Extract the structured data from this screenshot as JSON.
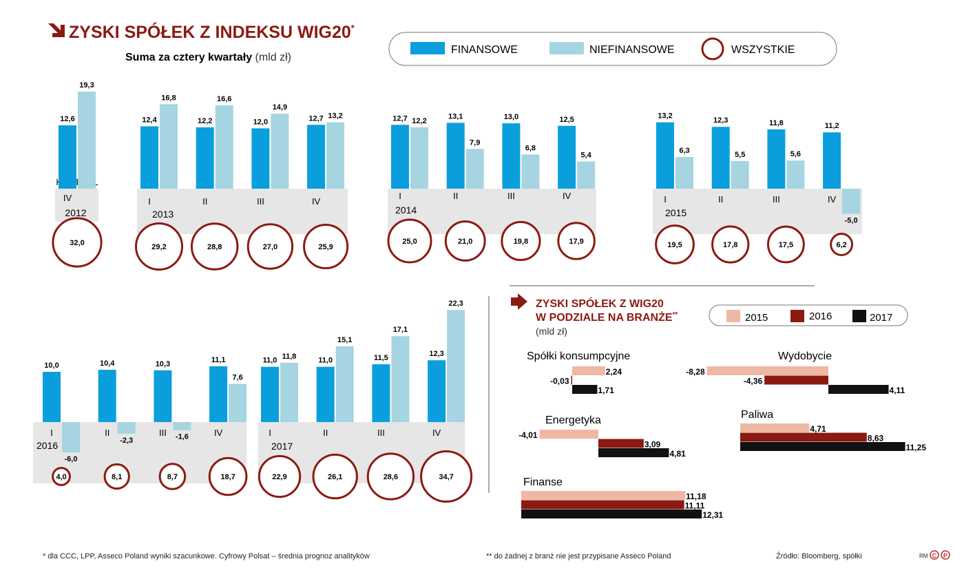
{
  "title": "ZYSKI SPÓŁEK Z INDEKSU WIG20",
  "title_mark": "*",
  "subtitle_bold": "Suma za cztery kwartały",
  "subtitle_unit": "(mld zł)",
  "quarter_caption": "KWARTAŁ",
  "legend": {
    "fin": "FINANSOWE",
    "nonfin": "NIEFINANSOWE",
    "total": "WSZYSTKIE"
  },
  "colors": {
    "fin": "#0a9fdc",
    "nonfin": "#a6d4e1",
    "total": "#8b1a12",
    "band": "#e6e6e6",
    "y2015": "#efb8a4",
    "y2016": "#8b1a12",
    "y2017": "#111111",
    "title": "#8b1a12"
  },
  "chart_data": [
    {
      "type": "bar",
      "title": "ZYSKI SPÓŁEK Z INDEKSU WIG20*",
      "subtitle": "Suma za cztery kwartały (mld zł)",
      "series_names": [
        "FINANSOWE",
        "NIEFINANSOWE",
        "WSZYSTKIE"
      ],
      "years": [
        {
          "year": "2012",
          "quarters": [
            {
              "q": "IV",
              "fin": 12.6,
              "nonfin": 19.3,
              "total": 32.0
            }
          ]
        },
        {
          "year": "2013",
          "quarters": [
            {
              "q": "I",
              "fin": 12.4,
              "nonfin": 16.8,
              "total": 29.2
            },
            {
              "q": "II",
              "fin": 12.2,
              "nonfin": 16.6,
              "total": 28.8
            },
            {
              "q": "III",
              "fin": 12.0,
              "nonfin": 14.9,
              "total": 27.0
            },
            {
              "q": "IV",
              "fin": 12.7,
              "nonfin": 13.2,
              "total": 25.9
            }
          ]
        },
        {
          "year": "2014",
          "quarters": [
            {
              "q": "I",
              "fin": 12.7,
              "nonfin": 12.2,
              "total": 25.0
            },
            {
              "q": "II",
              "fin": 13.1,
              "nonfin": 7.9,
              "total": 21.0
            },
            {
              "q": "III",
              "fin": 13.0,
              "nonfin": 6.8,
              "total": 19.8
            },
            {
              "q": "IV",
              "fin": 12.5,
              "nonfin": 5.4,
              "total": 17.9
            }
          ]
        },
        {
          "year": "2015",
          "quarters": [
            {
              "q": "I",
              "fin": 13.2,
              "nonfin": 6.3,
              "total": 19.5
            },
            {
              "q": "II",
              "fin": 12.3,
              "nonfin": 5.5,
              "total": 17.8
            },
            {
              "q": "III",
              "fin": 11.8,
              "nonfin": 5.6,
              "total": 17.5
            },
            {
              "q": "IV",
              "fin": 11.2,
              "nonfin": -5.0,
              "total": 6.2
            }
          ]
        },
        {
          "year": "2016",
          "quarters": [
            {
              "q": "I",
              "fin": 10.0,
              "nonfin": -6.0,
              "total": 4.0
            },
            {
              "q": "II",
              "fin": 10.4,
              "nonfin": -2.3,
              "total": 8.1
            },
            {
              "q": "III",
              "fin": 10.3,
              "nonfin": -1.6,
              "total": 8.7
            },
            {
              "q": "IV",
              "fin": 11.1,
              "nonfin": 7.6,
              "total": 18.7
            }
          ]
        },
        {
          "year": "2017",
          "quarters": [
            {
              "q": "I",
              "fin": 11.0,
              "nonfin": 11.8,
              "total": 22.9
            },
            {
              "q": "II",
              "fin": 11.0,
              "nonfin": 15.1,
              "total": 26.1
            },
            {
              "q": "III",
              "fin": 11.5,
              "nonfin": 17.1,
              "total": 28.6
            },
            {
              "q": "IV",
              "fin": 12.3,
              "nonfin": 22.3,
              "total": 34.7
            }
          ]
        }
      ]
    },
    {
      "type": "bar",
      "orientation": "horizontal",
      "title": "ZYSKI SPÓŁEK Z WIG20 W PODZIALE NA BRANŻE**",
      "unit": "(mld zł)",
      "series_names": [
        "2015",
        "2016",
        "2017"
      ],
      "sectors": [
        {
          "name": "Spółki konsumpcyjne",
          "values": [
            2.24,
            -0.03,
            1.71
          ]
        },
        {
          "name": "Wydobycie",
          "values": [
            -8.28,
            -4.36,
            4.11
          ]
        },
        {
          "name": "Energetyka",
          "values": [
            -4.01,
            3.09,
            4.81
          ]
        },
        {
          "name": "Paliwa",
          "values": [
            4.71,
            8.63,
            11.25
          ]
        },
        {
          "name": "Finanse",
          "values": [
            11.18,
            11.11,
            12.31
          ]
        }
      ]
    }
  ],
  "sector_title_line1": "ZYSKI SPÓŁEK Z WIG20",
  "sector_title_line2": "W PODZIALE NA BRANŻE",
  "sector_title_mark": "**",
  "sector_unit": "(mld zł)",
  "footer": {
    "note1": "* dla CCC, LPP, Asseco Poland wyniki szacunkowe. Cyfrowy Polsat – średnia prognoz analityków",
    "note2": "** do żadnej z branż nie jest przypisane Asseco Poland",
    "source": "Źródło: Bloomberg, spółki",
    "author": "RM",
    "logo": "CP"
  }
}
